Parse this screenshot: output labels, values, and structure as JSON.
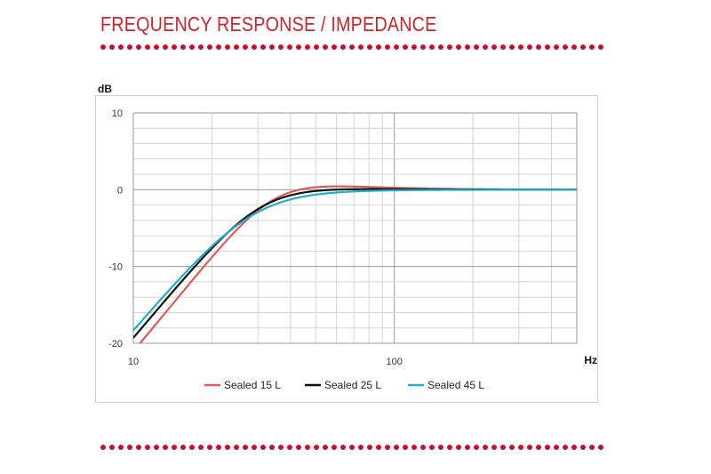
{
  "header": {
    "title": "FREQUENCY RESPONSE / IMPEDANCE"
  },
  "colors": {
    "accent": "#d2232a",
    "dots": "#c8102e"
  },
  "chart_data": {
    "type": "line",
    "xscale": "log",
    "xlabel": "Hz",
    "ylabel": "dB",
    "xlim": [
      10,
      500
    ],
    "ylim": [
      -20,
      10
    ],
    "x_ticks": [
      10,
      100
    ],
    "x_tick_labels": [
      "10",
      "100"
    ],
    "y_ticks": [
      10,
      0,
      -10,
      -20
    ],
    "y_tick_labels": [
      "10",
      "0",
      "-10",
      "-20"
    ],
    "grid": true,
    "legend_position": "bottom",
    "series": [
      {
        "name": "Sealed 15 L",
        "color": "#e05a5a",
        "fc": 34,
        "q": 0.85
      },
      {
        "name": "Sealed 25 L",
        "color": "#111111",
        "fc": 30.5,
        "q": 0.76
      },
      {
        "name": "Sealed 45 L",
        "color": "#1fb0c6",
        "fc": 28.5,
        "q": 0.68
      }
    ]
  }
}
